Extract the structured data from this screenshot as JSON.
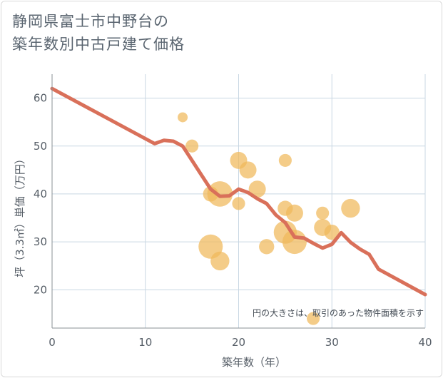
{
  "chart_data": {
    "type": "scatter",
    "title_line1": "静岡県富士市中野台の",
    "title_line2": "築年数別中古戸建て価格",
    "xlabel": "築年数（年）",
    "ylabel": "坪（3.3㎡）単価（万円）",
    "xlim": [
      0,
      40
    ],
    "ylim": [
      12,
      65
    ],
    "xticks": [
      0,
      10,
      20,
      30,
      40
    ],
    "yticks": [
      20,
      30,
      40,
      50,
      60
    ],
    "grid": true,
    "note": "円の大きさは、取引のあった物件面積を示す",
    "colors": {
      "bubble": "#f0b85a",
      "line": "#d9705a",
      "grid": "#c9d7e3",
      "axis": "#8a9096"
    },
    "bubbles": [
      {
        "x": 14,
        "y": 56,
        "size": 1
      },
      {
        "x": 15,
        "y": 50,
        "size": 2
      },
      {
        "x": 17,
        "y": 40,
        "size": 3
      },
      {
        "x": 17,
        "y": 29,
        "size": 9
      },
      {
        "x": 18,
        "y": 40,
        "size": 10
      },
      {
        "x": 18,
        "y": 26,
        "size": 5
      },
      {
        "x": 20,
        "y": 47,
        "size": 4
      },
      {
        "x": 20,
        "y": 38,
        "size": 2
      },
      {
        "x": 21,
        "y": 45,
        "size": 4
      },
      {
        "x": 22,
        "y": 41,
        "size": 4
      },
      {
        "x": 23,
        "y": 29,
        "size": 3
      },
      {
        "x": 25,
        "y": 47,
        "size": 2
      },
      {
        "x": 25,
        "y": 37,
        "size": 3
      },
      {
        "x": 25,
        "y": 32,
        "size": 8
      },
      {
        "x": 26,
        "y": 36,
        "size": 4
      },
      {
        "x": 26,
        "y": 30,
        "size": 9
      },
      {
        "x": 28,
        "y": 14,
        "size": 2
      },
      {
        "x": 29,
        "y": 36,
        "size": 2
      },
      {
        "x": 29,
        "y": 33,
        "size": 4
      },
      {
        "x": 30,
        "y": 32,
        "size": 3
      },
      {
        "x": 32,
        "y": 37,
        "size": 5
      }
    ],
    "trend": {
      "x": [
        0,
        11,
        12,
        13,
        14,
        15,
        16,
        17,
        18,
        19,
        20,
        21,
        22,
        23,
        24,
        25,
        26,
        27,
        28,
        29,
        30,
        31,
        32,
        33,
        34,
        35,
        40
      ],
      "y": [
        62,
        50.5,
        51.2,
        51,
        50,
        47,
        44,
        41,
        39.5,
        39.6,
        41,
        40.3,
        39,
        38,
        35.6,
        34,
        31,
        30.8,
        29.7,
        28.7,
        29.5,
        31.9,
        29.9,
        28.5,
        27.4,
        24.3,
        19
      ]
    }
  }
}
